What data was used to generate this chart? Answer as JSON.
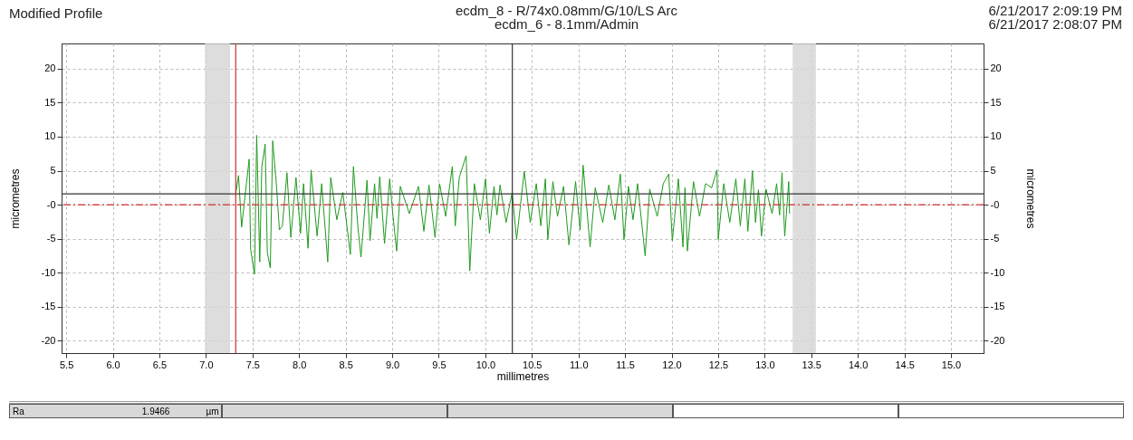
{
  "chart_data": {
    "type": "line",
    "title": "Modified Profile",
    "subtitle": "ecdm_8 - R/74x0.08mm/G/10/LS Arc\necdm_6 - 8.1mm/Admin",
    "annotations": [
      "6/21/2017 2:09:19 PM",
      "6/21/2017 2:08:07 PM",
      "Ra",
      "1.9466",
      "µm"
    ],
    "xlabel": "millimetres",
    "ylabel": "micrometres",
    "y2label": "micrometres",
    "xlim": [
      5.45,
      15.35
    ],
    "xticks": [
      {
        "value": 5.5,
        "label": "5.5"
      },
      {
        "value": 6,
        "label": "6.0"
      },
      {
        "value": 6.5,
        "label": "6.5"
      },
      {
        "value": 7,
        "label": "7.0"
      },
      {
        "value": 7.5,
        "label": "7.5"
      },
      {
        "value": 8,
        "label": "8.0"
      },
      {
        "value": 8.5,
        "label": "8.5"
      },
      {
        "value": 9,
        "label": "9.0"
      },
      {
        "value": 9.5,
        "label": "9.5"
      },
      {
        "value": 10,
        "label": "10.0"
      },
      {
        "value": 10.5,
        "label": "10.5"
      },
      {
        "value": 11,
        "label": "11.0"
      },
      {
        "value": 11.5,
        "label": "11.5"
      },
      {
        "value": 12,
        "label": "12.0"
      },
      {
        "value": 12.5,
        "label": "12.5"
      },
      {
        "value": 13,
        "label": "13.0"
      },
      {
        "value": 13.5,
        "label": "13.5"
      },
      {
        "value": 14,
        "label": "14.0"
      },
      {
        "value": 14.5,
        "label": "14.5"
      },
      {
        "value": 15,
        "label": "15.0"
      }
    ],
    "ylim": [
      -21.8,
      23.7
    ],
    "yticks": [
      -20,
      -15,
      -10,
      -5,
      {
        "value": 0,
        "label": "-0"
      },
      5,
      10,
      15,
      20
    ],
    "y2lim": [
      -21.8,
      23.7
    ],
    "y2ticks": [
      -20,
      -15,
      -10,
      -5,
      {
        "value": 0,
        "label": "-0"
      },
      5,
      10,
      15,
      20
    ],
    "grid": true,
    "marker": "none",
    "line_style": "solid",
    "ref_lines": [
      {
        "axis": "y",
        "value": 0,
        "color": "#d03030",
        "line_style": "dashed"
      },
      {
        "axis": "y",
        "value": 1.6,
        "color": "#333333",
        "line_style": "solid"
      },
      {
        "axis": "x",
        "value": 10.29,
        "color": "#333333",
        "line_style": "solid"
      },
      {
        "axis": "x",
        "value": 7.32,
        "color": "#d03030",
        "line_style": "solid"
      }
    ],
    "bands": [
      {
        "axis": "x",
        "from": 6.99,
        "to": 7.26,
        "color": "#d4d4d4"
      },
      {
        "axis": "x",
        "from": 13.3,
        "to": 13.55,
        "color": "#d4d4d4"
      }
    ],
    "series": [
      {
        "color": "#1f9a1f",
        "x": [
          7.318,
          7.35,
          7.383,
          7.464,
          7.48,
          7.522,
          7.545,
          7.578,
          7.6,
          7.636,
          7.659,
          7.691,
          7.717,
          7.756,
          7.789,
          7.821,
          7.87,
          7.912,
          7.967,
          8.016,
          8.048,
          8.097,
          8.129,
          8.194,
          8.243,
          8.308,
          8.34,
          8.405,
          8.47,
          8.551,
          8.584,
          8.632,
          8.665,
          8.73,
          8.762,
          8.811,
          8.837,
          8.866,
          8.918,
          8.973,
          9.006,
          9.048,
          9.087,
          9.184,
          9.282,
          9.34,
          9.395,
          9.46,
          9.509,
          9.574,
          9.645,
          9.677,
          9.72,
          9.794,
          9.833,
          9.882,
          9.947,
          10.002,
          10.044,
          10.093,
          10.125,
          10.158,
          10.223,
          10.288,
          10.336,
          10.418,
          10.482,
          10.547,
          10.596,
          10.645,
          10.671,
          10.726,
          10.775,
          10.84,
          10.898,
          10.969,
          11.018,
          11.05,
          11.125,
          11.18,
          11.261,
          11.326,
          11.391,
          11.45,
          11.489,
          11.537,
          11.586,
          11.635,
          11.716,
          11.765,
          11.846,
          11.911,
          11.969,
          12.008,
          12.073,
          12.122,
          12.144,
          12.17,
          12.235,
          12.3,
          12.365,
          12.43,
          12.488,
          12.501,
          12.56,
          12.625,
          12.69,
          12.738,
          12.787,
          12.819,
          12.868,
          12.901,
          12.933,
          12.965,
          13.014,
          13.079,
          13.128,
          13.16,
          13.186,
          13.215,
          13.258,
          13.267
        ],
        "values": [
          1.4,
          4.3,
          -3.3,
          6.7,
          -6.6,
          -10.2,
          10.2,
          -8.4,
          5.6,
          8.9,
          -7,
          -9.3,
          9.4,
          3.1,
          -3.7,
          -3.1,
          4.7,
          -4.8,
          4,
          -4.2,
          3.1,
          -6.4,
          5.1,
          -4.6,
          3.1,
          -8.4,
          4,
          -2.2,
          1.8,
          -7.3,
          5.6,
          -3.3,
          -7.7,
          3.6,
          -5.3,
          3.1,
          -2,
          4.1,
          -5.7,
          3.8,
          -1.3,
          -6.8,
          2.7,
          -1.3,
          2.7,
          -3.9,
          2.9,
          -4.8,
          3.1,
          -1.7,
          5.6,
          -3.1,
          4,
          7.2,
          -9.7,
          3.1,
          -2.2,
          3.8,
          -4.2,
          2.7,
          -1.5,
          2.9,
          -2.6,
          1.8,
          -5.1,
          4.9,
          -2.6,
          3.1,
          -3.1,
          3.8,
          -5.1,
          3.4,
          -1.7,
          2.7,
          -5.9,
          3.4,
          -3.7,
          5.8,
          -6.2,
          2.5,
          -2.6,
          2.9,
          -2.2,
          4.5,
          -5.1,
          2.7,
          -2.2,
          3.1,
          -7.5,
          2.3,
          -1.7,
          3.1,
          4.5,
          -5.3,
          3.8,
          -6.2,
          2.5,
          -6.8,
          3.4,
          -1.7,
          3.1,
          2.5,
          5.1,
          -5.1,
          3.1,
          -2.6,
          3.8,
          -3.1,
          3.8,
          -3.9,
          5,
          -2.6,
          2.2,
          -4.6,
          2.3,
          -1.3,
          3.1,
          -1.5,
          4.7,
          -4.6,
          3.4,
          -1.3
        ]
      }
    ]
  }
}
